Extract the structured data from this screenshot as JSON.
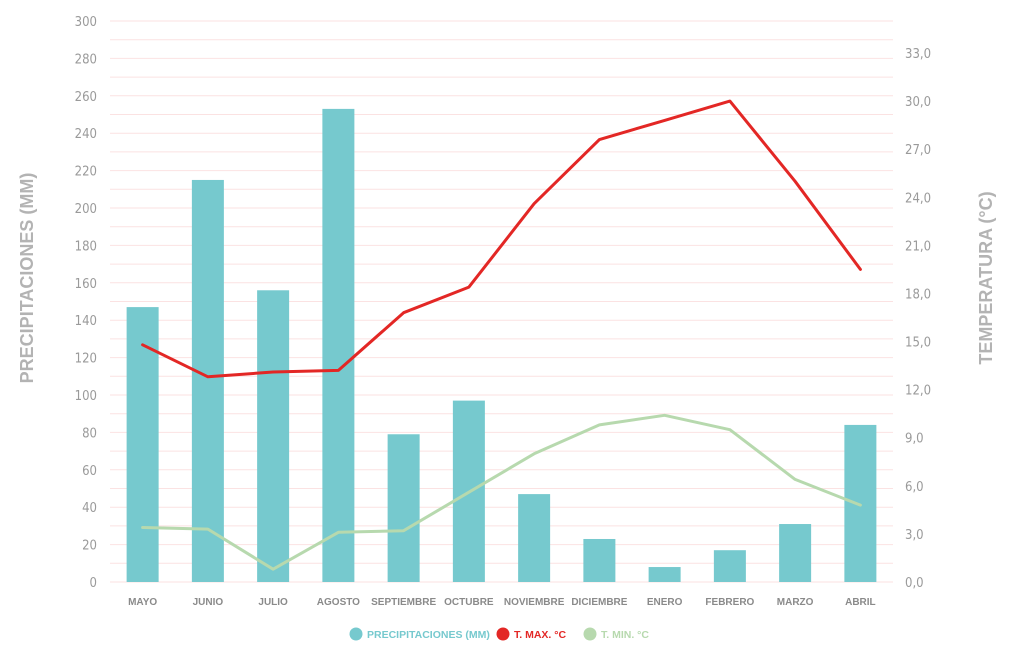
{
  "colors": {
    "bars": "#76c9ce",
    "tmax": "#e32725",
    "tmin": "#b7d9ae",
    "grid": "#fbe2e2",
    "text": "#9a9a9a",
    "axis_title": "#b3b3b3"
  },
  "chart_data": {
    "type": "bar",
    "categories": [
      "MAYO",
      "JUNIO",
      "JULIO",
      "AGOSTO",
      "SEPTIEMBRE",
      "OCTUBRE",
      "NOVIEMBRE",
      "DICIEMBRE",
      "ENERO",
      "FEBRERO",
      "MARZO",
      "ABRIL"
    ],
    "series": [
      {
        "name": "PRECIPITACIONES (MM)",
        "type": "bar",
        "axis": "left",
        "values": [
          147,
          215,
          156,
          253,
          79,
          97,
          47,
          23,
          8,
          17,
          31,
          84
        ]
      },
      {
        "name": "T. MAX. °C",
        "type": "line",
        "axis": "right",
        "values": [
          14.8,
          12.8,
          13.1,
          13.2,
          16.8,
          18.4,
          23.6,
          27.6,
          28.8,
          30.0,
          25.0,
          19.5
        ]
      },
      {
        "name": "T. MIN. °C",
        "type": "line",
        "axis": "right",
        "values": [
          3.4,
          3.3,
          0.8,
          3.1,
          3.2,
          5.6,
          8.0,
          9.8,
          10.4,
          9.5,
          6.4,
          4.8
        ]
      }
    ],
    "ylabel": "PRECIPITACIONES (MM)",
    "y2label": "TEMPERATURA (°C)",
    "ylim": [
      0,
      300
    ],
    "y2lim": [
      0,
      35
    ],
    "yticks": [
      "0",
      "20",
      "40",
      "60",
      "80",
      "100",
      "120",
      "140",
      "160",
      "180",
      "200",
      "220",
      "240",
      "260",
      "280",
      "300"
    ],
    "y2ticks": [
      "0,0",
      "3,0",
      "6,0",
      "9,0",
      "12,0",
      "15,0",
      "18,0",
      "21,0",
      "24,0",
      "27,0",
      "30,0",
      "33,0"
    ],
    "grid": true,
    "legend_position": "bottom-center"
  }
}
